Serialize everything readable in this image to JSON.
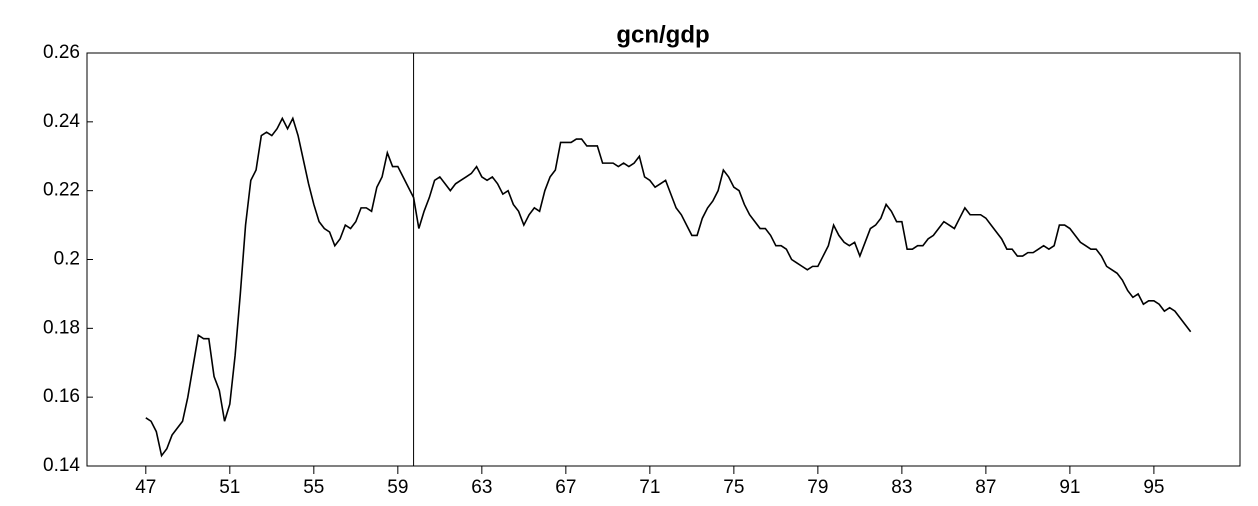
{
  "chart_data": {
    "type": "line",
    "title": "gcn/gdp",
    "x": [
      47,
      47.25,
      47.5,
      47.75,
      48,
      48.25,
      48.5,
      48.75,
      49,
      49.25,
      49.5,
      49.75,
      50,
      50.25,
      50.5,
      50.75,
      51,
      51.25,
      51.5,
      51.75,
      52,
      52.25,
      52.5,
      52.75,
      53,
      53.25,
      53.5,
      53.75,
      54,
      54.25,
      54.5,
      54.75,
      55,
      55.25,
      55.5,
      55.75,
      56,
      56.25,
      56.5,
      56.75,
      57,
      57.25,
      57.5,
      57.75,
      58,
      58.25,
      58.5,
      58.75,
      59,
      59.25,
      59.5,
      59.75,
      60,
      60.25,
      60.5,
      60.75,
      61,
      61.25,
      61.5,
      61.75,
      62,
      62.25,
      62.5,
      62.75,
      63,
      63.25,
      63.5,
      63.75,
      64,
      64.25,
      64.5,
      64.75,
      65,
      65.25,
      65.5,
      65.75,
      66,
      66.25,
      66.5,
      66.75,
      67,
      67.25,
      67.5,
      67.75,
      68,
      68.25,
      68.5,
      68.75,
      69,
      69.25,
      69.5,
      69.75,
      70,
      70.25,
      70.5,
      70.75,
      71,
      71.25,
      71.5,
      71.75,
      72,
      72.25,
      72.5,
      72.75,
      73,
      73.25,
      73.5,
      73.75,
      74,
      74.25,
      74.5,
      74.75,
      75,
      75.25,
      75.5,
      75.75,
      76,
      76.25,
      76.5,
      76.75,
      77,
      77.25,
      77.5,
      77.75,
      78,
      78.25,
      78.5,
      78.75,
      79,
      79.25,
      79.5,
      79.75,
      80,
      80.25,
      80.5,
      80.75,
      81,
      81.25,
      81.5,
      81.75,
      82,
      82.25,
      82.5,
      82.75,
      83,
      83.25,
      83.5,
      83.75,
      84,
      84.25,
      84.5,
      84.75,
      85,
      85.25,
      85.5,
      85.75,
      86,
      86.25,
      86.5,
      86.75,
      87,
      87.25,
      87.5,
      87.75,
      88,
      88.25,
      88.5,
      88.75,
      89,
      89.25,
      89.5,
      89.75,
      90,
      90.25,
      90.5,
      90.75,
      91,
      91.25,
      91.5,
      91.75,
      92,
      92.25,
      92.5,
      92.75,
      93,
      93.25,
      93.5,
      93.75,
      94,
      94.25,
      94.5,
      94.75,
      95,
      95.25,
      95.5,
      95.75,
      96,
      96.25,
      96.5,
      96.75
    ],
    "series": [
      {
        "color": "#000000",
        "values": [
          0.154,
          0.153,
          0.15,
          0.143,
          0.145,
          0.149,
          0.151,
          0.153,
          0.16,
          0.169,
          0.178,
          0.177,
          0.177,
          0.166,
          0.162,
          0.153,
          0.158,
          0.172,
          0.19,
          0.21,
          0.223,
          0.226,
          0.236,
          0.237,
          0.236,
          0.238,
          0.241,
          0.238,
          0.241,
          0.236,
          0.229,
          0.222,
          0.216,
          0.211,
          0.209,
          0.208,
          0.204,
          0.206,
          0.21,
          0.209,
          0.211,
          0.215,
          0.215,
          0.214,
          0.221,
          0.224,
          0.231,
          0.227,
          0.227,
          0.224,
          0.221,
          0.218,
          0.209,
          0.214,
          0.218,
          0.223,
          0.224,
          0.222,
          0.22,
          0.222,
          0.223,
          0.224,
          0.225,
          0.227,
          0.224,
          0.223,
          0.224,
          0.222,
          0.219,
          0.22,
          0.216,
          0.214,
          0.21,
          0.213,
          0.215,
          0.214,
          0.22,
          0.224,
          0.226,
          0.234,
          0.234,
          0.234,
          0.235,
          0.235,
          0.233,
          0.233,
          0.233,
          0.228,
          0.228,
          0.228,
          0.227,
          0.228,
          0.227,
          0.228,
          0.23,
          0.224,
          0.223,
          0.221,
          0.222,
          0.223,
          0.219,
          0.215,
          0.213,
          0.21,
          0.207,
          0.207,
          0.212,
          0.215,
          0.217,
          0.22,
          0.226,
          0.224,
          0.221,
          0.22,
          0.216,
          0.213,
          0.211,
          0.209,
          0.209,
          0.207,
          0.204,
          0.204,
          0.203,
          0.2,
          0.199,
          0.198,
          0.197,
          0.198,
          0.198,
          0.201,
          0.204,
          0.21,
          0.207,
          0.205,
          0.204,
          0.205,
          0.201,
          0.205,
          0.209,
          0.21,
          0.212,
          0.216,
          0.214,
          0.211,
          0.211,
          0.203,
          0.203,
          0.204,
          0.204,
          0.206,
          0.207,
          0.209,
          0.211,
          0.21,
          0.209,
          0.212,
          0.215,
          0.213,
          0.213,
          0.213,
          0.212,
          0.21,
          0.208,
          0.206,
          0.203,
          0.203,
          0.201,
          0.201,
          0.202,
          0.202,
          0.203,
          0.204,
          0.203,
          0.204,
          0.21,
          0.21,
          0.209,
          0.207,
          0.205,
          0.204,
          0.203,
          0.203,
          0.201,
          0.198,
          0.197,
          0.196,
          0.194,
          0.191,
          0.189,
          0.19,
          0.187,
          0.188,
          0.188,
          0.187,
          0.185,
          0.186,
          0.185,
          0.183,
          0.181,
          0.179
        ]
      }
    ],
    "xlim": [
      44.2,
      99.1
    ],
    "xticks": [
      47,
      51,
      55,
      59,
      63,
      67,
      71,
      75,
      79,
      83,
      87,
      91,
      95
    ],
    "ylim": [
      0.14,
      0.26
    ],
    "yticks": [
      0.14,
      0.16,
      0.18,
      0.2,
      0.22,
      0.24,
      0.26
    ],
    "reference_line": 59.75
  }
}
